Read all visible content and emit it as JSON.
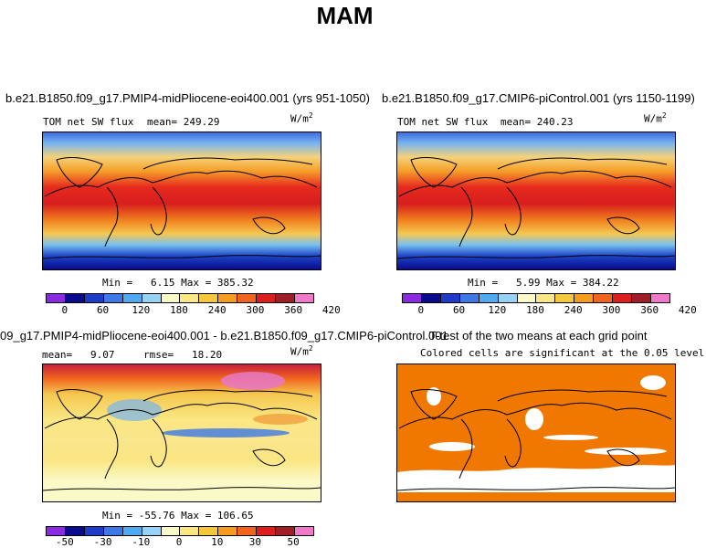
{
  "title": "MAM",
  "panels": [
    {
      "title": "b.e21.B1850.f09_g17.PMIP4-midPliocene-eoi400.001 (yrs 951-1050)",
      "variable": "TOM net SW flux",
      "mean_text": "mean= 249.29",
      "units": "W/m",
      "units_exp": "2",
      "minmax_text": "Min =   6.15 Max = 385.32"
    },
    {
      "title": "b.e21.B1850.f09_g17.CMIP6-piControl.001 (yrs 1150-1199)",
      "variable": "TOM net SW flux",
      "mean_text": "mean= 240.23",
      "units": "W/m",
      "units_exp": "2",
      "minmax_text": "Min =   5.99 Max = 384.22"
    },
    {
      "title": "09_g17.PMIP4-midPliocene-eoi400.001 - b.e21.B1850.f09_g17.CMIP6-piControl.001",
      "mean_text": "mean=   9.07",
      "rmse_text": "rmse=   18.20",
      "units": "W/m",
      "units_exp": "2",
      "minmax_text": "Min = -55.76 Max = 106.65"
    },
    {
      "title": "T-test of the two means at each grid point",
      "subtitle": "Colored cells are significant at the 0.05 level"
    }
  ],
  "colorbars": {
    "abs_ticks": [
      "0",
      "60",
      "120",
      "180",
      "240",
      "300",
      "360",
      "420"
    ],
    "diff_ticks": [
      "-50",
      "-30",
      "-10",
      "0",
      "10",
      "30",
      "50"
    ],
    "abs_colors": [
      "#8a2be2",
      "#0a0a8c",
      "#1e3cc8",
      "#3c78e6",
      "#50aaf0",
      "#96d2f5",
      "#fafac8",
      "#fae682",
      "#f5c83c",
      "#f59b1e",
      "#f0641e",
      "#dc1e1e",
      "#a01e28",
      "#f078c8"
    ],
    "diff_colors": [
      "#8a2be2",
      "#0a0a8c",
      "#1e3cc8",
      "#3c78e6",
      "#50aaf0",
      "#96d2f5",
      "#fafac8",
      "#fae682",
      "#f5c83c",
      "#f59b1e",
      "#f0641e",
      "#dc1e1e",
      "#a01e28",
      "#f078c8"
    ],
    "ttest_color": "#f07800"
  },
  "chart_data": [
    {
      "type": "heatmap",
      "title": "b.e21.B1850.f09_g17.PMIP4-midPliocene-eoi400.001 (yrs 951-1050)",
      "variable": "TOM net SW flux",
      "units": "W/m2",
      "mean": 249.29,
      "min": 6.15,
      "max": 385.32,
      "colorbar_ticks": [
        0,
        60,
        120,
        180,
        240,
        300,
        360,
        420
      ]
    },
    {
      "type": "heatmap",
      "title": "b.e21.B1850.f09_g17.CMIP6-piControl.001 (yrs 1150-1199)",
      "variable": "TOM net SW flux",
      "units": "W/m2",
      "mean": 240.23,
      "min": 5.99,
      "max": 384.22,
      "colorbar_ticks": [
        0,
        60,
        120,
        180,
        240,
        300,
        360,
        420
      ]
    },
    {
      "type": "heatmap",
      "title": "09_g17.PMIP4-midPliocene-eoi400.001 - b.e21.B1850.f09_g17.CMIP6-piControl.001",
      "units": "W/m2",
      "mean": 9.07,
      "rmse": 18.2,
      "min": -55.76,
      "max": 106.65,
      "colorbar_ticks": [
        -50,
        -30,
        -10,
        0,
        10,
        30,
        50
      ]
    },
    {
      "type": "heatmap",
      "title": "T-test of the two means at each grid point",
      "subtitle": "Colored cells are significant at the 0.05 level"
    }
  ]
}
